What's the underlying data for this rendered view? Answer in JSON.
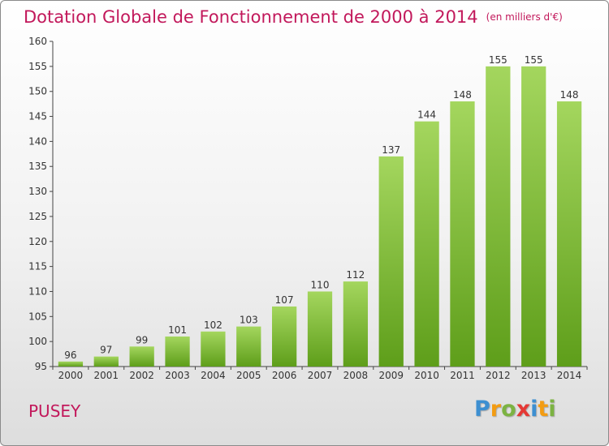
{
  "title": "Dotation Globale de Fonctionnement de 2000 à 2014",
  "subtitle": "(en milliers d'€)",
  "commune": "PUSEY",
  "logo": {
    "text": "Proxiti",
    "letters": [
      {
        "ch": "P",
        "color": "#3d8fd1"
      },
      {
        "ch": "r",
        "color": "#f39c12"
      },
      {
        "ch": "o",
        "color": "#7cb342"
      },
      {
        "ch": "x",
        "color": "#e53935"
      },
      {
        "ch": "i",
        "color": "#3d8fd1"
      },
      {
        "ch": "t",
        "color": "#f39c12"
      },
      {
        "ch": "i",
        "color": "#7cb342"
      }
    ]
  },
  "colors": {
    "title": "#c2185b",
    "bar_light": "#a4d65e",
    "bar_dark": "#5e9e1a",
    "axis": "#444444",
    "grid_tick": "#333333"
  },
  "chart_data": {
    "type": "bar",
    "categories": [
      "2000",
      "2001",
      "2002",
      "2003",
      "2004",
      "2005",
      "2006",
      "2007",
      "2008",
      "2009",
      "2010",
      "2011",
      "2012",
      "2013",
      "2014"
    ],
    "values": [
      96,
      97,
      99,
      101,
      102,
      103,
      107,
      110,
      112,
      137,
      144,
      148,
      155,
      155,
      148
    ],
    "ylim": [
      95,
      160
    ],
    "yticks": [
      95,
      100,
      105,
      110,
      115,
      120,
      125,
      130,
      135,
      140,
      145,
      150,
      155,
      160
    ],
    "grid": false,
    "data_labels": true
  }
}
